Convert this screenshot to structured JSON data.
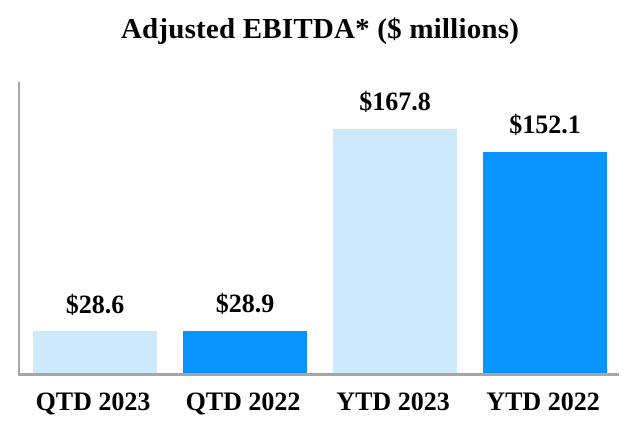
{
  "chart_data": {
    "type": "bar",
    "title": "Adjusted EBITDA* ($ millions)",
    "categories": [
      "QTD 2023",
      "QTD 2022",
      "YTD 2023",
      "YTD 2022"
    ],
    "values": [
      28.6,
      28.9,
      167.8,
      152.1
    ],
    "bars": [
      {
        "category": "QTD 2023",
        "value": 28.6,
        "label": "$28.6",
        "color": "#CDEAFC"
      },
      {
        "category": "QTD 2022",
        "value": 28.9,
        "label": "$28.9",
        "color": "#0894FC"
      },
      {
        "category": "YTD 2023",
        "value": 167.8,
        "label": "$167.8",
        "color": "#CDEAFC"
      },
      {
        "category": "YTD 2022",
        "value": 152.1,
        "label": "$152.1",
        "color": "#0894FC"
      }
    ],
    "xlabel": "",
    "ylabel": "",
    "ylim": [
      0,
      200
    ],
    "grid": false,
    "legend": false,
    "colors": {
      "series_2023": "#CDEAFC",
      "series_2022": "#0894FC",
      "axis": "#A6A6A6",
      "text": "#000000",
      "background": "#FFFFFF"
    }
  }
}
